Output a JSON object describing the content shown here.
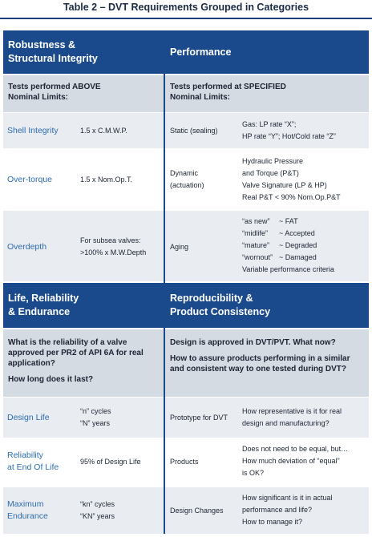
{
  "title": "Table 2 – DVT Requirements Grouped in Categories",
  "section1": {
    "left_header": [
      "Robustness &",
      "Structural Integrity"
    ],
    "right_header": "Performance",
    "left_sub": [
      "Tests performed ABOVE",
      "Nominal Limits:"
    ],
    "right_sub": [
      "Tests performed at SPECIFIED",
      "Nominal Limits:"
    ],
    "rows": [
      {
        "label": "Shell Integrity",
        "value": "1.5 x C.M.W.P.",
        "test": "Static (sealing)",
        "detail": [
          "Gas: LP rate “X”;",
          "HP rate “Y”; Hot/Cold rate “Z”"
        ]
      },
      {
        "label": "Over-torque",
        "value": "1.5 x Nom.Op.T.",
        "test": [
          "Dynamic",
          "(actuation)"
        ],
        "detail": [
          "Hydraulic Pressure",
          "and Torque (P&T)",
          "Valve Signature (LP & HP)",
          "Real P&T < 90% Nom.Op.P&T"
        ]
      },
      {
        "label": "Overdepth",
        "value": [
          "For subsea valves:",
          ">100% x M.W.Depth"
        ],
        "test": "Aging",
        "detail": [
          [
            "“as new”",
            "~ FAT"
          ],
          [
            "“midlife”",
            "~ Accepted"
          ],
          [
            "“mature”",
            "~ Degraded"
          ],
          [
            "“wornout”",
            "~ Damaged"
          ],
          "Variable performance criteria"
        ]
      }
    ]
  },
  "section2": {
    "left_header": [
      "Life, Reliability",
      "& Endurance"
    ],
    "right_header": [
      "Reproducibility &",
      "Product Consistency"
    ],
    "left_sub": [
      "What is the reliability of a valve",
      "approved per PR2 of API 6A for real",
      "application?",
      "How long does it last?"
    ],
    "right_sub": [
      "Design is approved in DVT/PVT. What now?",
      "How to assure products performing in a similar",
      "and consistent way to one tested during DVT?"
    ],
    "rows": [
      {
        "label": "Design Life",
        "value": [
          "“n” cycles",
          "“N” years"
        ],
        "test": "Prototype for DVT",
        "detail": [
          "How representative is it for real",
          "design and manufacturing?"
        ]
      },
      {
        "label": [
          "Reliability",
          "at End Of Life"
        ],
        "value": "95% of  Design Life",
        "test": "Products",
        "detail": [
          "Does not need to be equal, but…",
          "How much deviation of “equal”",
          "is OK?"
        ]
      },
      {
        "label": [
          "Maximum",
          "Endurance"
        ],
        "value": [
          "“kn” cycles",
          "“KN” years"
        ],
        "test": "Design Changes",
        "detail": [
          "How significant is it in actual",
          "performance and life?",
          "How to manage it?"
        ]
      }
    ]
  }
}
